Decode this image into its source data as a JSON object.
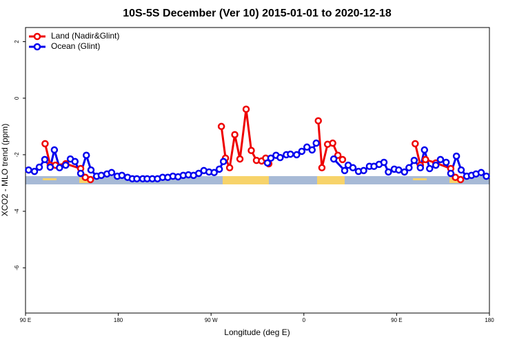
{
  "chart_data": {
    "type": "line",
    "title": "10S-5S December (Ver 10)   2015-01-01 to 2020-12-18",
    "x_label": "Longitude (deg E)",
    "y_label": "XCO2 - MLO trend (ppm)",
    "xlim": [
      90,
      540
    ],
    "ylim": [
      -7.6,
      2.5
    ],
    "xticks": [
      {
        "value": 90,
        "label": "90 E"
      },
      180,
      {
        "value": 270,
        "label": "90 W"
      },
      {
        "value": 360,
        "label": "0"
      },
      {
        "value": 450,
        "label": "90 E"
      },
      {
        "value": 540,
        "label": "180"
      }
    ],
    "yticks": [
      2,
      0,
      -2,
      -4,
      -6
    ],
    "legend": "top-left",
    "series": [
      {
        "name": "Land (Nadir&Glint)",
        "color": "#ee0000",
        "x": [
          109,
          114,
          119,
          129,
          143.5,
          148,
          153,
          null,
          280,
          284,
          288,
          293,
          298,
          304,
          309,
          314,
          319,
          323,
          326,
          null,
          374,
          377.5,
          383,
          388,
          393,
          397.5,
          null,
          468,
          473,
          478,
          488,
          502.5,
          507,
          512
        ],
        "values": [
          -1.61,
          -2.37,
          -2.37,
          -2.32,
          -2.49,
          -2.8,
          -2.88,
          null,
          -1.0,
          -2.12,
          -2.46,
          -1.29,
          -2.15,
          -0.39,
          -1.85,
          -2.2,
          -2.22,
          -2.12,
          -2.32,
          null,
          -0.8,
          -2.46,
          -1.63,
          -1.59,
          -2.02,
          -2.17,
          null,
          -1.61,
          -2.37,
          -2.17,
          -2.29,
          -2.49,
          -2.8,
          -2.88
        ]
      },
      {
        "name": "Ocean (Glint)",
        "color": "#0000ee",
        "x": [
          93,
          98.7,
          103.4,
          108.7,
          114,
          118,
          123,
          129,
          133.5,
          138,
          143.5,
          149,
          153.5,
          159,
          163.5,
          169,
          173.5,
          179,
          183.5,
          189,
          193.6,
          198,
          203.7,
          208,
          213,
          218,
          223,
          228,
          233,
          238,
          243,
          248,
          253,
          258,
          263,
          268,
          273,
          278,
          282,
          null,
          324.7,
          328,
          333,
          337,
          343,
          347,
          353,
          358,
          363,
          368,
          372,
          null,
          389,
          399.6,
          403,
          407.6,
          413,
          418,
          423.6,
          428,
          433,
          437.7,
          442,
          447.7,
          452,
          457.6,
          462,
          467,
          473,
          477,
          482,
          488,
          492.5,
          498,
          502.5,
          508,
          512.6,
          518,
          522.6,
          527,
          532,
          537
        ],
        "values": [
          -2.54,
          -2.59,
          -2.44,
          -2.17,
          -2.44,
          -1.83,
          -2.46,
          -2.37,
          -2.15,
          -2.24,
          -2.66,
          -2.02,
          -2.54,
          -2.76,
          -2.73,
          -2.68,
          -2.63,
          -2.76,
          -2.73,
          -2.8,
          -2.85,
          -2.85,
          -2.85,
          -2.85,
          -2.85,
          -2.85,
          -2.8,
          -2.8,
          -2.76,
          -2.78,
          -2.73,
          -2.71,
          -2.73,
          -2.66,
          -2.56,
          -2.61,
          -2.63,
          -2.51,
          -2.24,
          null,
          -2.29,
          -2.12,
          -2.02,
          -2.1,
          -2.0,
          -1.98,
          -2.0,
          -1.88,
          -1.73,
          -1.83,
          -1.59,
          null,
          -2.15,
          -2.56,
          -2.37,
          -2.46,
          -2.59,
          -2.56,
          -2.41,
          -2.41,
          -2.34,
          -2.27,
          -2.61,
          -2.51,
          -2.54,
          -2.61,
          -2.46,
          -2.2,
          -2.46,
          -1.83,
          -2.49,
          -2.37,
          -2.17,
          -2.27,
          -2.66,
          -2.05,
          -2.54,
          -2.76,
          -2.73,
          -2.68,
          -2.63,
          -2.76
        ]
      }
    ]
  }
}
